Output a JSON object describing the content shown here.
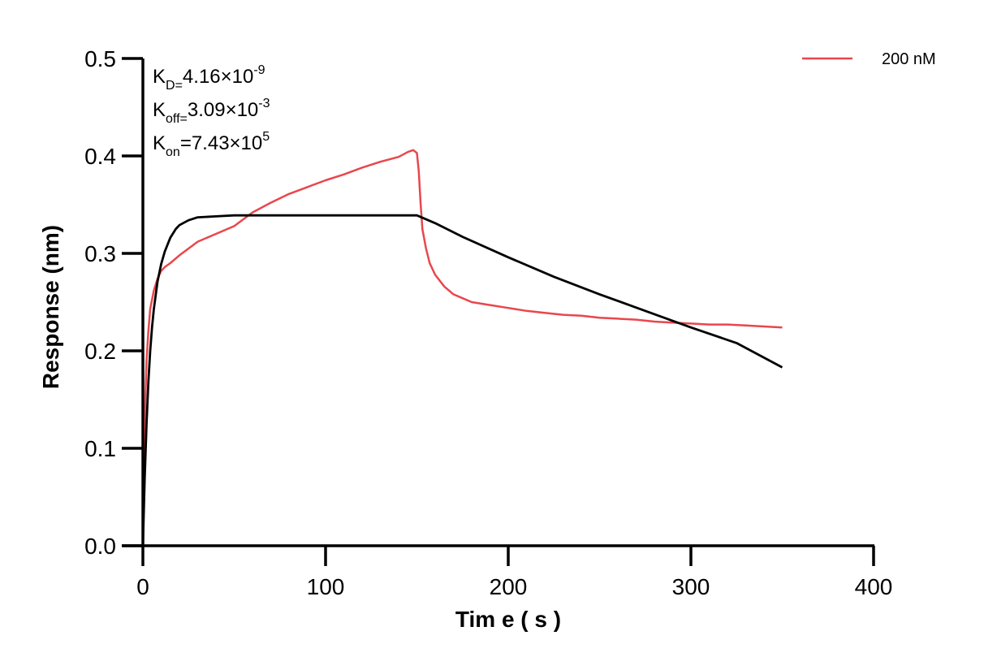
{
  "chart_data": {
    "type": "line",
    "xlabel": "Tim e ( s )",
    "ylabel": "Response (nm)",
    "xlim": [
      0,
      400
    ],
    "ylim": [
      0,
      0.5
    ],
    "x_ticks": [
      "0",
      "100",
      "200",
      "300",
      "400"
    ],
    "y_ticks": [
      "0.0",
      "0.1",
      "0.2",
      "0.3",
      "0.4",
      "0.5"
    ],
    "legend_position": "top-right",
    "annotations": [
      {
        "base": "K",
        "sub": "D=",
        "value": "4.16×10",
        "sup": "-9"
      },
      {
        "base": "K",
        "sub": "off=",
        "value": "3.09×10",
        "sup": "-3"
      },
      {
        "base": "K",
        "sub": "on",
        "value": "=7.43×10",
        "sup": "5"
      }
    ],
    "series": [
      {
        "name": "200 nM",
        "color": "#e8474c",
        "x": [
          0,
          1,
          2,
          3,
          4,
          6,
          8,
          10,
          12,
          15,
          20,
          25,
          30,
          40,
          50,
          60,
          70,
          80,
          90,
          100,
          110,
          120,
          130,
          140,
          145,
          148,
          150,
          151,
          152,
          153,
          155,
          157,
          160,
          165,
          170,
          175,
          180,
          190,
          200,
          210,
          220,
          230,
          240,
          250,
          260,
          270,
          280,
          290,
          300,
          310,
          320,
          330,
          340,
          350
        ],
        "y": [
          0,
          0.13,
          0.19,
          0.22,
          0.243,
          0.262,
          0.274,
          0.282,
          0.286,
          0.29,
          0.298,
          0.305,
          0.312,
          0.32,
          0.328,
          0.342,
          0.352,
          0.361,
          0.368,
          0.375,
          0.381,
          0.388,
          0.394,
          0.399,
          0.404,
          0.406,
          0.403,
          0.385,
          0.352,
          0.325,
          0.305,
          0.29,
          0.278,
          0.266,
          0.258,
          0.254,
          0.25,
          0.247,
          0.244,
          0.241,
          0.239,
          0.237,
          0.236,
          0.234,
          0.233,
          0.232,
          0.23,
          0.229,
          0.228,
          0.227,
          0.227,
          0.226,
          0.225,
          0.224
        ]
      },
      {
        "name": "",
        "color": "#000000",
        "x": [
          0,
          1,
          2,
          3,
          4,
          5,
          6,
          8,
          10,
          12,
          15,
          18,
          20,
          25,
          30,
          40,
          50,
          60,
          80,
          100,
          120,
          140,
          148,
          150,
          160,
          175,
          200,
          225,
          250,
          275,
          300,
          325,
          350
        ],
        "y": [
          0,
          0.07,
          0.125,
          0.168,
          0.2,
          0.224,
          0.243,
          0.271,
          0.289,
          0.302,
          0.316,
          0.325,
          0.329,
          0.334,
          0.337,
          0.338,
          0.339,
          0.339,
          0.339,
          0.339,
          0.339,
          0.339,
          0.339,
          0.339,
          0.331,
          0.317,
          0.296,
          0.276,
          0.258,
          0.241,
          0.224,
          0.208,
          0.183
        ]
      }
    ]
  }
}
